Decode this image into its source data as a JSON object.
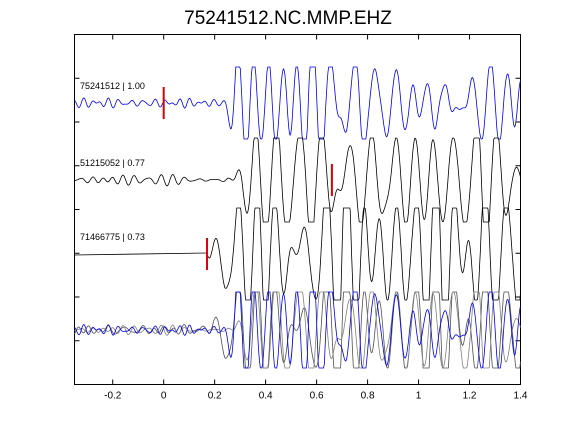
{
  "figure": {
    "title": "75241512.NC.MMP.EHZ"
  },
  "chart_data": {
    "type": "line",
    "title": "75241512.NC.MMP.EHZ",
    "xlabel": "",
    "ylabel": "",
    "xlim": [
      -0.35,
      1.4
    ],
    "x_ticks": [
      "-0.2",
      "0",
      "0.2",
      "0.4",
      "0.6",
      "0.8",
      "1",
      "1.2",
      "1.4"
    ],
    "x_tick_values": [
      -0.2,
      0,
      0.2,
      0.4,
      0.6,
      0.8,
      1.0,
      1.2,
      1.4
    ],
    "grid": false,
    "traces": [
      {
        "name": "75241512",
        "label": "75241512 | 1.00",
        "correlation": 1.0,
        "color": "#0000ee",
        "pick_time": 0.0,
        "onset": 0.0,
        "signal_start": 0.22
      },
      {
        "name": "51215052",
        "label": "51215052 | 0.77",
        "correlation": 0.77,
        "color": "#000000",
        "pick_time": 0.66,
        "onset": 0.2,
        "signal_start": 0.25
      },
      {
        "name": "71466775",
        "label": "71466775 | 0.73",
        "correlation": 0.73,
        "color": "#000000",
        "pick_time": 0.17,
        "onset": 0.17,
        "signal_start": 0.18
      }
    ],
    "overlay": {
      "description_colors": [
        "#0000ee",
        "#808080",
        "#505050"
      ]
    },
    "pick_color": "#dd0000"
  }
}
